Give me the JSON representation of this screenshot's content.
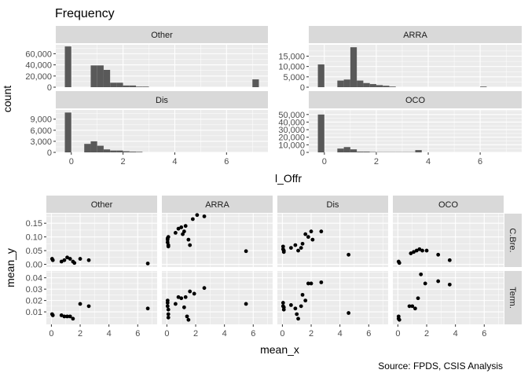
{
  "chart_data": [
    {
      "type": "bar",
      "subtype": "faceted-histogram",
      "title": "Frequency",
      "xlabel": "l_Offr",
      "ylabel": "count",
      "bins": [
        -0.25,
        0.0,
        0.25,
        0.5,
        0.75,
        1.0,
        1.25,
        1.5,
        1.75,
        2.0,
        2.25,
        2.5,
        2.75,
        3.0,
        3.25,
        3.5,
        3.75,
        4.0,
        4.25,
        4.5,
        4.75,
        5.0,
        5.25,
        5.5,
        5.75,
        6.0,
        6.25,
        6.5,
        6.75,
        7.0,
        7.25
      ],
      "x_ticks": [
        "0",
        "2",
        "4",
        "6"
      ],
      "xlim": [
        -0.6,
        7.6
      ],
      "facets": [
        {
          "name": "Other",
          "ylim": [
            0,
            76000
          ],
          "y_ticks": [
            0,
            20000,
            40000,
            60000
          ],
          "y_tick_labels": [
            "0",
            "20,000",
            "40,000",
            "60,000"
          ],
          "values": [
            73000,
            0,
            0,
            0,
            39000,
            39000,
            31000,
            8000,
            8000,
            3000,
            3000,
            1000,
            1000,
            0,
            0,
            0,
            0,
            0,
            0,
            0,
            0,
            0,
            0,
            0,
            0,
            0,
            0,
            0,
            0,
            14000
          ]
        },
        {
          "name": "ARRA",
          "ylim": [
            0,
            20500
          ],
          "y_ticks": [
            0,
            5000,
            10000,
            15000
          ],
          "y_tick_labels": [
            "0",
            "5,000",
            "10,000",
            "15,000"
          ],
          "values": [
            11000,
            0,
            0,
            3200,
            3700,
            19300,
            3200,
            2000,
            1500,
            1000,
            700,
            300,
            0,
            0,
            0,
            0,
            0,
            0,
            0,
            0,
            0,
            0,
            0,
            0,
            0,
            300,
            0,
            0,
            0,
            0
          ]
        },
        {
          "name": "Dis",
          "ylim": [
            0,
            11500
          ],
          "y_ticks": [
            0,
            3000,
            6000,
            9000
          ],
          "y_tick_labels": [
            "0",
            "3,000",
            "6,000",
            "9,000"
          ],
          "values": [
            10800,
            0,
            0,
            2300,
            3000,
            1800,
            800,
            500,
            500,
            300,
            200,
            150,
            0,
            0,
            0,
            0,
            0,
            0,
            0,
            0,
            0,
            0,
            0,
            0,
            0,
            0,
            0,
            0,
            0,
            0
          ]
        },
        {
          "name": "OCO",
          "ylim": [
            0,
            56000
          ],
          "y_ticks": [
            0,
            10000,
            20000,
            30000,
            40000,
            50000
          ],
          "y_tick_labels": [
            "0",
            "10,000",
            "20,000",
            "30,000",
            "40,000",
            "50,000"
          ],
          "values": [
            50000,
            0,
            0,
            5000,
            7000,
            4000,
            1000,
            1000,
            500,
            300,
            300,
            300,
            300,
            300,
            300,
            3000,
            0,
            0,
            0,
            0,
            0,
            0,
            0,
            0,
            0,
            0,
            0,
            0,
            0,
            0
          ]
        }
      ]
    },
    {
      "type": "scatter",
      "subtype": "facet-grid",
      "xlabel": "mean_x",
      "ylabel": "mean_y",
      "x_ticks": [
        "0",
        "2",
        "4",
        "6"
      ],
      "xlim": [
        -0.35,
        7.35
      ],
      "columns": [
        "Other",
        "ARRA",
        "Dis",
        "OCO"
      ],
      "rows": [
        {
          "name": "C.Bre.",
          "ylim": [
            -0.01,
            0.185
          ],
          "y_ticks": [
            0.0,
            0.05,
            0.1,
            0.15
          ],
          "y_tick_labels": [
            "0.00",
            "0.05",
            "0.10",
            "0.15"
          ]
        },
        {
          "name": "Term.",
          "ylim": [
            -0.001,
            0.046
          ],
          "y_ticks": [
            0.01,
            0.02,
            0.03,
            0.04
          ],
          "y_tick_labels": [
            "0.01",
            "0.02",
            "0.03",
            "0.04"
          ]
        }
      ],
      "panels": [
        {
          "row": "C.Bre.",
          "col": "Other",
          "points": [
            [
              0.05,
              0.02
            ],
            [
              0.1,
              0.015
            ],
            [
              0.7,
              0.01
            ],
            [
              0.9,
              0.015
            ],
            [
              1.1,
              0.025
            ],
            [
              1.3,
              0.02
            ],
            [
              1.5,
              0.01
            ],
            [
              1.6,
              0.005
            ],
            [
              2.0,
              0.02
            ],
            [
              2.6,
              0.015
            ],
            [
              6.7,
              0.003
            ]
          ]
        },
        {
          "row": "C.Bre.",
          "col": "ARRA",
          "points": [
            [
              0.05,
              0.08
            ],
            [
              0.05,
              0.09
            ],
            [
              0.05,
              0.095
            ],
            [
              0.1,
              0.1
            ],
            [
              0.1,
              0.07
            ],
            [
              0.1,
              0.065
            ],
            [
              0.6,
              0.115
            ],
            [
              0.8,
              0.13
            ],
            [
              1.0,
              0.135
            ],
            [
              1.1,
              0.11
            ],
            [
              1.2,
              0.12
            ],
            [
              1.3,
              0.14
            ],
            [
              1.5,
              0.09
            ],
            [
              1.6,
              0.07
            ],
            [
              1.8,
              0.165
            ],
            [
              2.1,
              0.18
            ],
            [
              2.6,
              0.175
            ],
            [
              5.5,
              0.048
            ]
          ]
        },
        {
          "row": "C.Bre.",
          "col": "Dis",
          "points": [
            [
              0.05,
              0.065
            ],
            [
              0.05,
              0.055
            ],
            [
              0.1,
              0.05
            ],
            [
              0.1,
              0.045
            ],
            [
              0.6,
              0.06
            ],
            [
              0.9,
              0.07
            ],
            [
              1.1,
              0.05
            ],
            [
              1.3,
              0.06
            ],
            [
              1.4,
              0.075
            ],
            [
              1.6,
              0.11
            ],
            [
              1.8,
              0.1
            ],
            [
              2.0,
              0.12
            ],
            [
              2.1,
              0.09
            ],
            [
              2.7,
              0.12
            ],
            [
              4.6,
              0.035
            ]
          ]
        },
        {
          "row": "C.Bre.",
          "col": "OCO",
          "points": [
            [
              0.05,
              0.01
            ],
            [
              0.1,
              0.005
            ],
            [
              0.9,
              0.04
            ],
            [
              1.1,
              0.045
            ],
            [
              1.3,
              0.05
            ],
            [
              1.5,
              0.055
            ],
            [
              1.7,
              0.05
            ],
            [
              2.0,
              0.05
            ],
            [
              2.8,
              0.035
            ],
            [
              3.6,
              0.015
            ]
          ]
        },
        {
          "row": "Term.",
          "col": "Other",
          "points": [
            [
              0.05,
              0.008
            ],
            [
              0.1,
              0.007
            ],
            [
              0.7,
              0.007
            ],
            [
              0.9,
              0.006
            ],
            [
              1.1,
              0.006
            ],
            [
              1.3,
              0.006
            ],
            [
              1.5,
              0.004
            ],
            [
              2.0,
              0.017
            ],
            [
              2.6,
              0.015
            ],
            [
              6.7,
              0.013
            ]
          ]
        },
        {
          "row": "Term.",
          "col": "ARRA",
          "points": [
            [
              0.05,
              0.02
            ],
            [
              0.05,
              0.018
            ],
            [
              0.05,
              0.015
            ],
            [
              0.1,
              0.012
            ],
            [
              0.1,
              0.008
            ],
            [
              0.1,
              0.005
            ],
            [
              0.6,
              0.017
            ],
            [
              0.8,
              0.023
            ],
            [
              1.0,
              0.022
            ],
            [
              1.2,
              0.014
            ],
            [
              1.3,
              0.023
            ],
            [
              1.4,
              0.006
            ],
            [
              1.5,
              0.003
            ],
            [
              1.6,
              0.028
            ],
            [
              1.9,
              0.026
            ],
            [
              2.6,
              0.031
            ],
            [
              5.5,
              0.017
            ]
          ]
        },
        {
          "row": "Term.",
          "col": "Dis",
          "points": [
            [
              0.05,
              0.018
            ],
            [
              0.05,
              0.015
            ],
            [
              0.1,
              0.014
            ],
            [
              0.1,
              0.012
            ],
            [
              0.6,
              0.016
            ],
            [
              0.9,
              0.013
            ],
            [
              1.0,
              0.008
            ],
            [
              1.1,
              0.004
            ],
            [
              1.3,
              0.015
            ],
            [
              1.4,
              0.025
            ],
            [
              1.6,
              0.02
            ],
            [
              1.8,
              0.035
            ],
            [
              2.0,
              0.035
            ],
            [
              2.7,
              0.036
            ],
            [
              4.6,
              0.009
            ]
          ]
        },
        {
          "row": "Term.",
          "col": "OCO",
          "points": [
            [
              0.05,
              0.006
            ],
            [
              0.05,
              0.004
            ],
            [
              0.1,
              0.003
            ],
            [
              0.8,
              0.015
            ],
            [
              1.0,
              0.015
            ],
            [
              1.2,
              0.013
            ],
            [
              1.4,
              0.022
            ],
            [
              1.6,
              0.043
            ],
            [
              1.9,
              0.035
            ],
            [
              2.8,
              0.037
            ],
            [
              3.6,
              0.034
            ]
          ]
        }
      ]
    }
  ],
  "caption": "Source: FPDS, CSIS Analysis",
  "colors": {
    "panel_bg": "#ebebeb",
    "strip_bg": "#d9d9d9",
    "bar": "#595959",
    "point": "#000000",
    "grid": "#ffffff",
    "text": "#1a1a1a",
    "tick_text": "#4d4d4d"
  }
}
